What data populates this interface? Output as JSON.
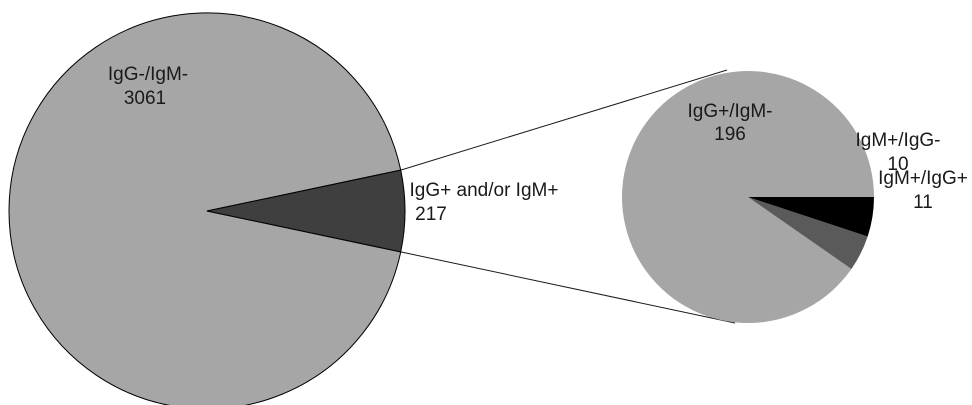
{
  "chart_data": [
    {
      "type": "pie",
      "title": "",
      "slices": [
        {
          "label": "IgG-/IgM-",
          "value": 3061,
          "color": "#a6a6a6"
        },
        {
          "label": "IgG+ and/or IgM+",
          "value": 217,
          "color": "#3f3f3f"
        }
      ]
    },
    {
      "type": "pie",
      "title": "",
      "breakdown_of": "IgG+ and/or IgM+",
      "slices": [
        {
          "label": "IgG+/IgM-",
          "value": 196,
          "color": "#a6a6a6"
        },
        {
          "label": "IgM+/IgG-",
          "value": 10,
          "color": "#5a5a5a"
        },
        {
          "label": "IgM+/IgG+",
          "value": 11,
          "color": "#000000"
        }
      ]
    }
  ]
}
